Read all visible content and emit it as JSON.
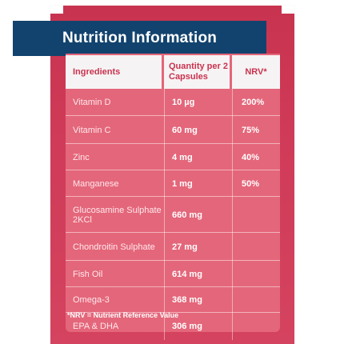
{
  "header": {
    "title": "Nutrition Information"
  },
  "columns": {
    "ingredients": "Ingredients",
    "quantity": "Quantity per 2 Capsules",
    "nrv": "NRV*"
  },
  "rows": [
    {
      "ingredient": "Vitamin D",
      "quantity": "10 µg",
      "nrv": "200%"
    },
    {
      "ingredient": "Vitamin C",
      "quantity": "60 mg",
      "nrv": "75%"
    },
    {
      "ingredient": "Zinc",
      "quantity": "4 mg",
      "nrv": "40%"
    },
    {
      "ingredient": "Manganese",
      "quantity": "1 mg",
      "nrv": "50%"
    },
    {
      "ingredient": "Glucosamine Sulphate 2KCl",
      "quantity": "660 mg",
      "nrv": ""
    },
    {
      "ingredient": "Chondroitin Sulphate",
      "quantity": "27 mg",
      "nrv": ""
    },
    {
      "ingredient": "Fish Oil",
      "quantity": "614 mg",
      "nrv": ""
    },
    {
      "ingredient": "Omega-3",
      "quantity": "368 mg",
      "nrv": ""
    },
    {
      "ingredient": "EPA & DHA",
      "quantity": "306 mg",
      "nrv": ""
    }
  ],
  "footnote": "*NRV = Nutrient Reference Value",
  "colors": {
    "panel": "#c8334f",
    "header": "#12436e",
    "card": "#e4667a",
    "column_header_bg": "#f6f3f4",
    "column_header_text": "#c8334f"
  }
}
